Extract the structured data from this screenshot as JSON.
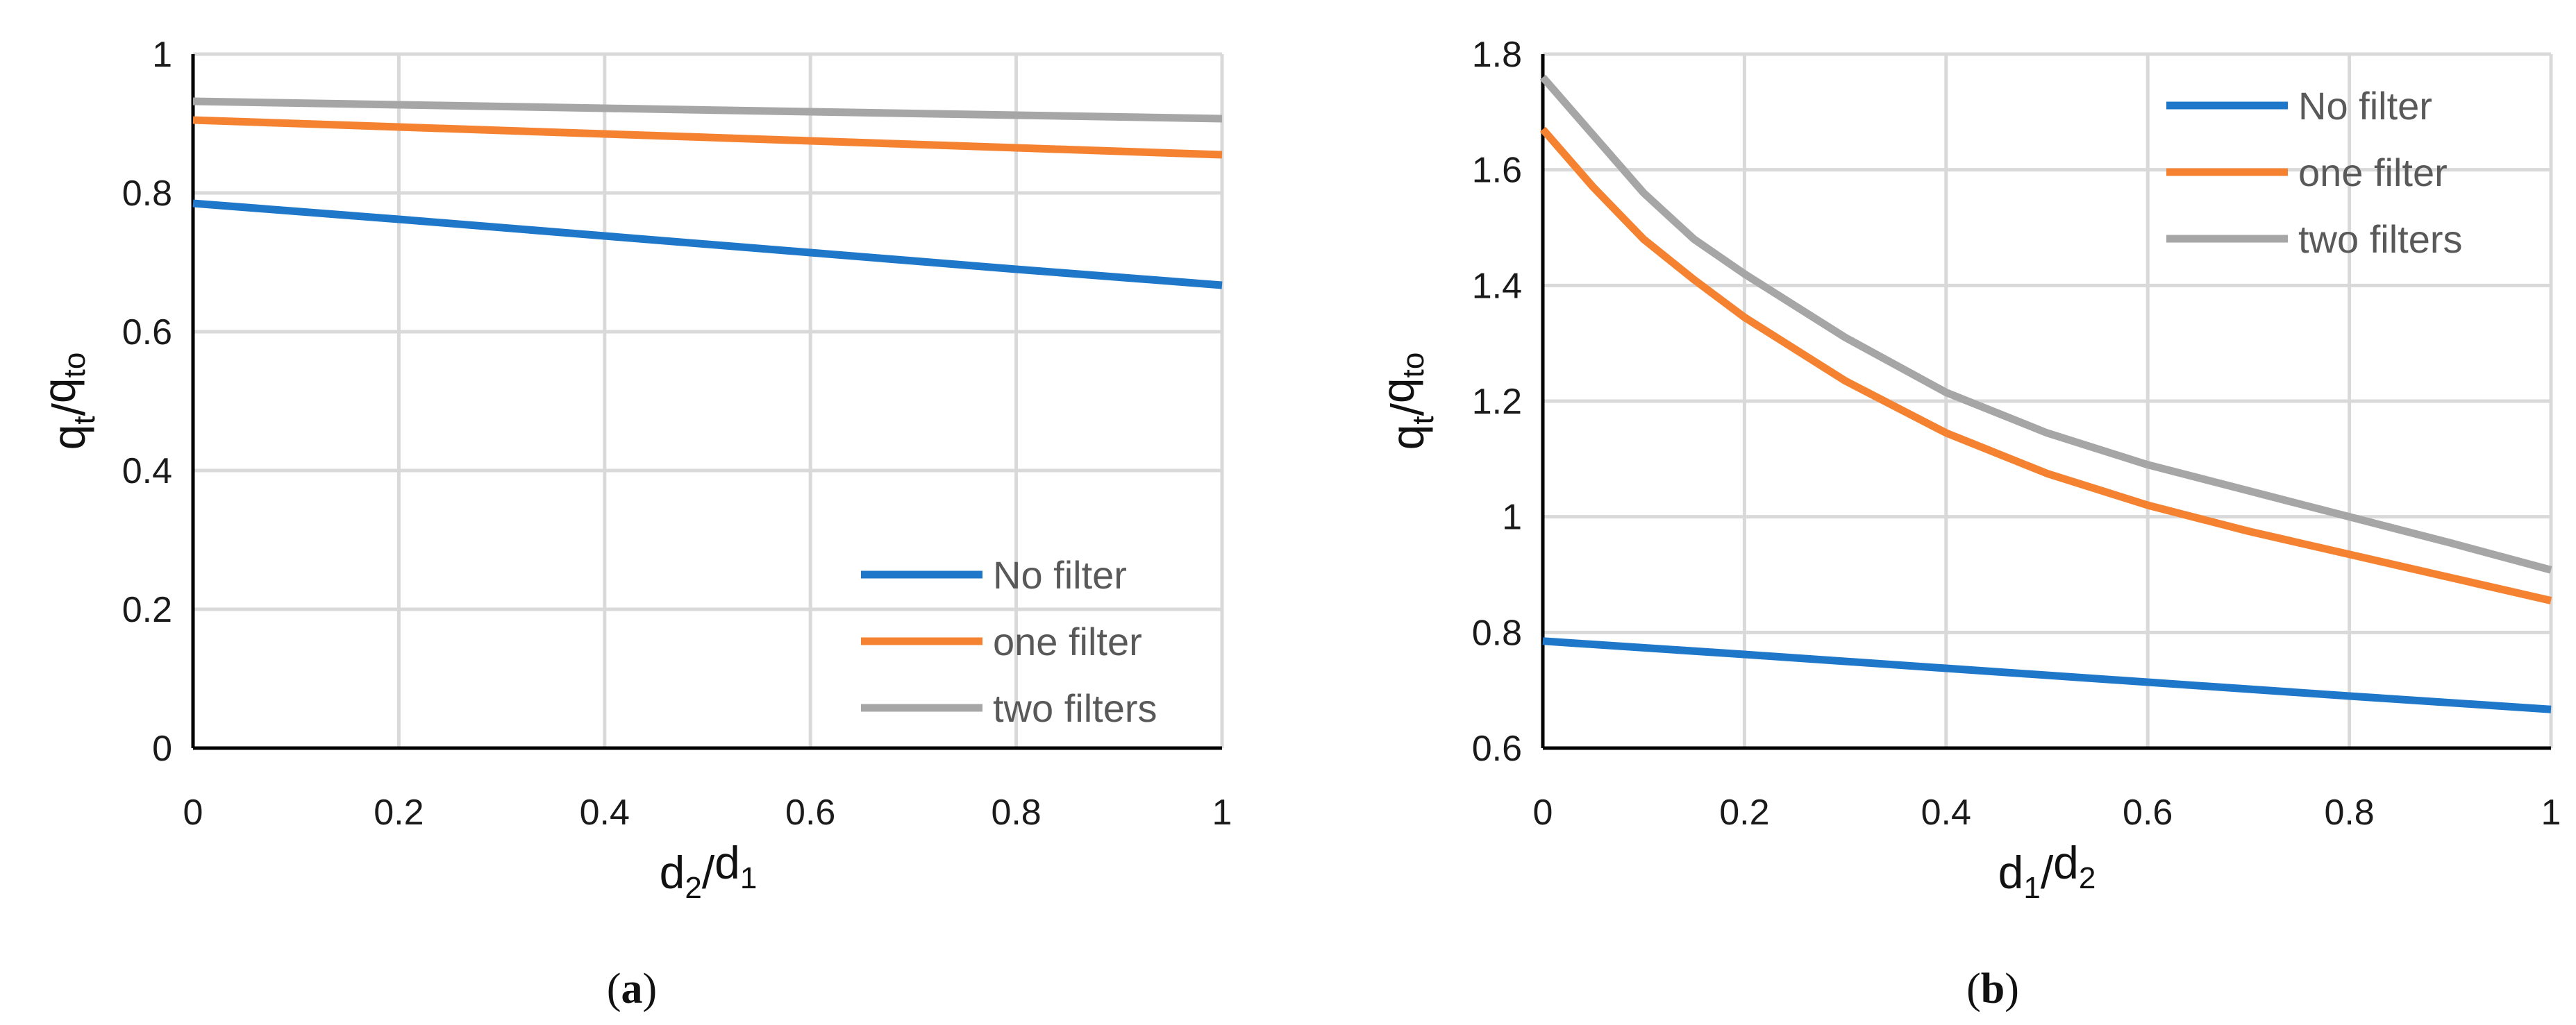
{
  "chart_data": [
    {
      "type": "line",
      "panel": "a",
      "caption": {
        "open": "(",
        "letter": "a",
        "close": ")"
      },
      "xlabel": {
        "base1": "d",
        "sub1": "2",
        "slash": "/",
        "base2": "d",
        "sub2": "1"
      },
      "ylabel": {
        "base1": "q",
        "sub1": "t",
        "slash": "/",
        "base2": "q",
        "sub2": "to"
      },
      "xlim": [
        0,
        1
      ],
      "ylim": [
        0,
        1
      ],
      "xticks": [
        0,
        0.2,
        0.4,
        0.6,
        0.8,
        1
      ],
      "yticks": [
        0,
        0.2,
        0.4,
        0.6,
        0.8,
        1
      ],
      "xtick_labels": [
        "0",
        "0.2",
        "0.4",
        "0.6",
        "0.8",
        "1"
      ],
      "ytick_labels": [
        "0",
        "0.2",
        "0.4",
        "0.6",
        "0.8",
        "1"
      ],
      "grid": true,
      "legend_position": "bottom-right",
      "series": [
        {
          "name": "No filter",
          "color": "#1f77c9",
          "x": [
            0,
            0.2,
            0.4,
            0.6,
            0.8,
            1
          ],
          "y": [
            0.785,
            0.762,
            0.738,
            0.714,
            0.69,
            0.667
          ]
        },
        {
          "name": "one filter",
          "color": "#f58231",
          "x": [
            0,
            0.2,
            0.4,
            0.6,
            0.8,
            1
          ],
          "y": [
            0.905,
            0.895,
            0.885,
            0.875,
            0.865,
            0.855
          ]
        },
        {
          "name": "two filters",
          "color": "#a6a6a6",
          "x": [
            0,
            0.2,
            0.4,
            0.6,
            0.8,
            1
          ],
          "y": [
            0.932,
            0.927,
            0.922,
            0.917,
            0.912,
            0.907
          ]
        }
      ]
    },
    {
      "type": "line",
      "panel": "b",
      "caption": {
        "open": "(",
        "letter": "b",
        "close": ")"
      },
      "xlabel": {
        "base1": "d",
        "sub1": "1",
        "slash": "/",
        "base2": "d",
        "sub2": "2"
      },
      "ylabel": {
        "base1": "q",
        "sub1": "t",
        "slash": "/",
        "base2": "q",
        "sub2": "to"
      },
      "xlim": [
        0,
        1
      ],
      "ylim": [
        0.6,
        1.8
      ],
      "xticks": [
        0,
        0.2,
        0.4,
        0.6,
        0.8,
        1
      ],
      "yticks": [
        0.6,
        0.8,
        1,
        1.2,
        1.4,
        1.6,
        1.8
      ],
      "xtick_labels": [
        "0",
        "0.2",
        "0.4",
        "0.6",
        "0.8",
        "1"
      ],
      "ytick_labels": [
        "0.6",
        "0.8",
        "1",
        "1.2",
        "1.4",
        "1.6",
        "1.8"
      ],
      "grid": true,
      "legend_position": "top-right",
      "series": [
        {
          "name": "No filter",
          "color": "#1f77c9",
          "x": [
            0,
            0.2,
            0.4,
            0.6,
            0.8,
            1
          ],
          "y": [
            0.785,
            0.762,
            0.738,
            0.714,
            0.69,
            0.667
          ]
        },
        {
          "name": "one filter",
          "color": "#f58231",
          "x": [
            0,
            0.05,
            0.1,
            0.15,
            0.2,
            0.3,
            0.4,
            0.5,
            0.6,
            0.7,
            0.8,
            0.9,
            1
          ],
          "y": [
            1.67,
            1.57,
            1.48,
            1.41,
            1.345,
            1.235,
            1.145,
            1.075,
            1.02,
            0.975,
            0.935,
            0.895,
            0.855
          ]
        },
        {
          "name": "two filters",
          "color": "#a6a6a6",
          "x": [
            0,
            0.05,
            0.1,
            0.15,
            0.2,
            0.3,
            0.4,
            0.5,
            0.6,
            0.7,
            0.8,
            0.9,
            1
          ],
          "y": [
            1.76,
            1.66,
            1.56,
            1.48,
            1.42,
            1.31,
            1.215,
            1.145,
            1.09,
            1.045,
            1.0,
            0.955,
            0.908
          ]
        }
      ]
    }
  ]
}
